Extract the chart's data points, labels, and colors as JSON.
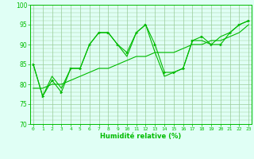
{
  "line1_x": [
    0,
    1,
    2,
    3,
    4,
    5,
    6,
    7,
    8,
    9,
    10,
    11,
    12,
    13,
    14,
    15,
    16,
    17,
    18,
    19,
    20,
    21,
    22,
    23
  ],
  "line1_y": [
    85,
    77,
    81,
    78,
    84,
    84,
    90,
    93,
    93,
    90,
    88,
    93,
    95,
    90,
    83,
    83,
    84,
    91,
    92,
    90,
    90,
    93,
    95,
    96
  ],
  "line2_x": [
    0,
    1,
    2,
    3,
    4,
    5,
    6,
    7,
    8,
    9,
    10,
    11,
    12,
    13,
    14,
    15,
    16,
    17,
    18,
    19,
    20,
    21,
    22,
    23
  ],
  "line2_y": [
    85,
    77,
    82,
    79,
    84,
    84,
    90,
    93,
    93,
    90,
    87,
    93,
    95,
    88,
    82,
    83,
    84,
    91,
    91,
    90,
    92,
    93,
    95,
    96
  ],
  "smooth_x": [
    0,
    1,
    2,
    3,
    4,
    5,
    6,
    7,
    8,
    9,
    10,
    11,
    12,
    13,
    14,
    15,
    16,
    17,
    18,
    19,
    20,
    21,
    22,
    23
  ],
  "smooth_y": [
    79,
    79,
    80,
    80,
    81,
    82,
    83,
    84,
    84,
    85,
    86,
    87,
    87,
    88,
    88,
    88,
    89,
    90,
    90,
    91,
    91,
    92,
    93,
    95
  ],
  "line_color": "#00BB00",
  "bg_color": "#E0FFF5",
  "grid_color": "#99CC99",
  "xlabel": "Humidité relative (%)",
  "ylim": [
    70,
    100
  ],
  "xlim": [
    -0.3,
    23.3
  ],
  "yticks": [
    70,
    75,
    80,
    85,
    90,
    95,
    100
  ],
  "xticks": [
    0,
    1,
    2,
    3,
    4,
    5,
    6,
    7,
    8,
    9,
    10,
    11,
    12,
    13,
    14,
    15,
    16,
    17,
    18,
    19,
    20,
    21,
    22,
    23
  ],
  "tick_fontsize": 4.5,
  "ytick_fontsize": 5.5,
  "xlabel_fontsize": 6.0,
  "linewidth": 0.8,
  "markersize": 2.2
}
